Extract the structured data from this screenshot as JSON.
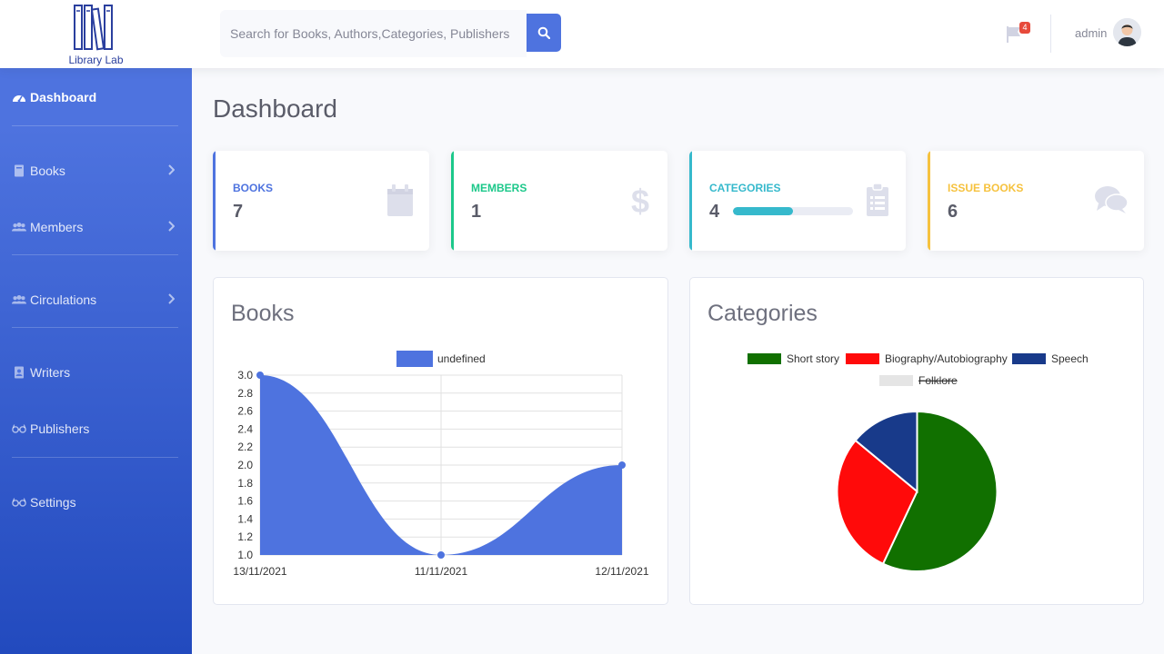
{
  "brand": {
    "name": "Library Lab",
    "icon": "books-icon"
  },
  "search": {
    "placeholder": "Search for Books, Authors,Categories, Publishers",
    "button_icon": "search-icon"
  },
  "alerts": {
    "icon": "flag-icon",
    "count": "4"
  },
  "user": {
    "name": "admin",
    "avatar": "user-avatar"
  },
  "sidebar": {
    "items": [
      {
        "label": "Dashboard",
        "icon": "tachometer-icon",
        "active": true
      },
      {
        "label": "Books",
        "icon": "book-icon",
        "chevron": true
      },
      {
        "label": "Members",
        "icon": "users-icon",
        "chevron": true
      },
      {
        "label": "Circulations",
        "icon": "users-icon",
        "chevron": true
      },
      {
        "label": "Writers",
        "icon": "address-book-icon"
      },
      {
        "label": "Publishers",
        "icon": "glasses-icon"
      },
      {
        "label": "Settings",
        "icon": "glasses-icon"
      }
    ]
  },
  "page": {
    "title": "Dashboard"
  },
  "cards": [
    {
      "label": "BOOKS",
      "value": "7",
      "color": "#4e73df",
      "icon": "calendar-icon"
    },
    {
      "label": "MEMBERS",
      "value": "1",
      "color": "#1cc88a",
      "icon": "dollar-icon"
    },
    {
      "label": "CATEGORIES",
      "value": "4",
      "color": "#36b9cc",
      "icon": "clipboard-list-icon",
      "progress_percent": 50
    },
    {
      "label": "ISSUE BOOKS",
      "value": "6",
      "color": "#f6c23e",
      "icon": "comments-icon"
    }
  ],
  "chart_data": [
    {
      "type": "area",
      "title": "Books",
      "legend_position": "top",
      "x": [
        "13/11/2021",
        "11/11/2021",
        "12/11/2021"
      ],
      "series": [
        {
          "name": "undefined",
          "values": [
            3.0,
            1.0,
            2.0
          ],
          "color": "#4e73df"
        }
      ],
      "ylim": [
        1.0,
        3.0
      ],
      "yticks": [
        "3.0",
        "2.8",
        "2.6",
        "2.4",
        "2.2",
        "2.0",
        "1.8",
        "1.6",
        "1.4",
        "1.2",
        "1.0"
      ],
      "grid": true
    },
    {
      "type": "pie",
      "title": "Categories",
      "legend_position": "top",
      "labels": [
        "Short story",
        "Biography/Autobiography",
        "Speech",
        "Folklore"
      ],
      "values": [
        57,
        29,
        14,
        0
      ],
      "colors": [
        "#117000",
        "#ff0a0a",
        "#183a8a",
        "#e5e5e5"
      ],
      "hidden": [
        false,
        false,
        false,
        true
      ]
    }
  ]
}
